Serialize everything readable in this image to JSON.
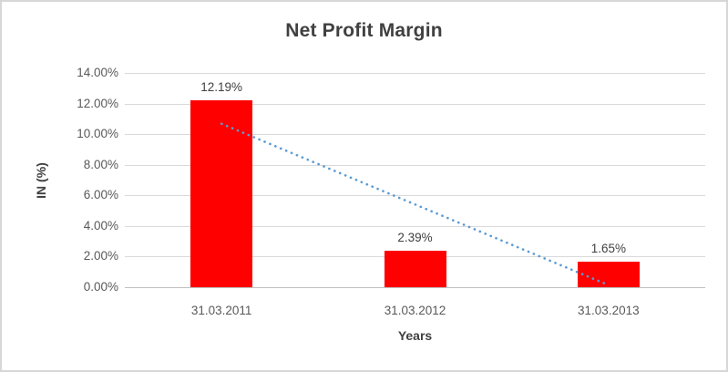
{
  "chart_data": {
    "type": "bar",
    "title": "Net Profit Margin",
    "xlabel": "Years",
    "ylabel": "IN (%)",
    "categories": [
      "31.03.2011",
      "31.03.2012",
      "31.03.2013"
    ],
    "values": [
      12.19,
      2.39,
      1.65
    ],
    "data_labels": [
      "12.19%",
      "2.39%",
      "1.65%"
    ],
    "ylim": [
      0,
      14
    ],
    "y_tick_step": 2,
    "y_tick_labels": [
      "0.00%",
      "2.00%",
      "4.00%",
      "6.00%",
      "8.00%",
      "10.00%",
      "12.00%",
      "14.00%"
    ],
    "grid": true,
    "legend": false,
    "bar_color": "#ff0000",
    "trendline": {
      "type": "linear",
      "style": "dotted",
      "color": "#5b9bd5",
      "start_value": 10.68,
      "end_value": 0.14,
      "start_category_index": 0,
      "end_category_index": 2
    }
  }
}
